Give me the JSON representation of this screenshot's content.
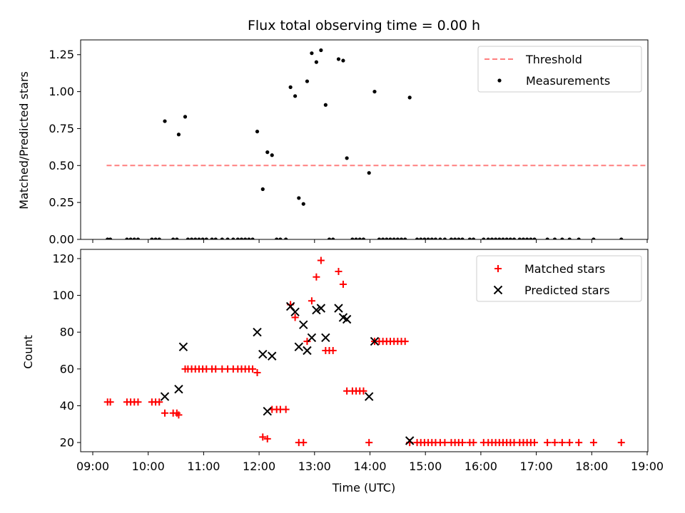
{
  "chart_data": [
    {
      "type": "scatter",
      "title": "Flux total observing time = 0.00 h",
      "xlabel": "",
      "ylabel": "Matched/Predicted stars",
      "xlim": [
        "09:00",
        "19:00"
      ],
      "ylim": [
        0,
        1.35
      ],
      "yticks": [
        "0.00",
        "0.25",
        "0.50",
        "0.75",
        "1.00",
        "1.25"
      ],
      "xticks_shown": false,
      "legend_position": "top-right",
      "series": [
        {
          "name": "Threshold",
          "style": "dashed-line",
          "color": "#ff7f7f",
          "points": [
            [
              "09:15",
              0.5
            ],
            [
              "18:58",
              0.5
            ]
          ]
        },
        {
          "name": "Measurements",
          "style": "dot",
          "color": "#000000",
          "points": [
            [
              "09:16",
              0
            ],
            [
              "09:19",
              0
            ],
            [
              "09:37",
              0
            ],
            [
              "09:41",
              0
            ],
            [
              "09:45",
              0
            ],
            [
              "09:49",
              0
            ],
            [
              "10:04",
              0
            ],
            [
              "10:08",
              0
            ],
            [
              "10:12",
              0
            ],
            [
              "10:18",
              0.8
            ],
            [
              "10:27",
              0
            ],
            [
              "10:31",
              0
            ],
            [
              "10:33",
              0.71
            ],
            [
              "10:40",
              0.83
            ],
            [
              "10:43",
              0
            ],
            [
              "10:47",
              0
            ],
            [
              "10:51",
              0
            ],
            [
              "10:55",
              0
            ],
            [
              "10:59",
              0
            ],
            [
              "11:03",
              0
            ],
            [
              "11:09",
              0
            ],
            [
              "11:13",
              0
            ],
            [
              "11:20",
              0
            ],
            [
              "11:26",
              0
            ],
            [
              "11:32",
              0
            ],
            [
              "11:37",
              0
            ],
            [
              "11:41",
              0
            ],
            [
              "11:45",
              0
            ],
            [
              "11:49",
              0
            ],
            [
              "11:53",
              0
            ],
            [
              "11:58",
              0.73
            ],
            [
              "12:04",
              0.34
            ],
            [
              "12:09",
              0.59
            ],
            [
              "12:14",
              0.57
            ],
            [
              "12:19",
              0
            ],
            [
              "12:23",
              0
            ],
            [
              "12:29",
              0
            ],
            [
              "12:34",
              1.03
            ],
            [
              "12:39",
              0.97
            ],
            [
              "12:43",
              0.28
            ],
            [
              "12:48",
              0.24
            ],
            [
              "12:52",
              1.07
            ],
            [
              "12:57",
              1.26
            ],
            [
              "13:02",
              1.2
            ],
            [
              "13:07",
              1.28
            ],
            [
              "13:12",
              0.91
            ],
            [
              "13:16",
              0
            ],
            [
              "13:20",
              0
            ],
            [
              "13:26",
              1.22
            ],
            [
              "13:31",
              1.21
            ],
            [
              "13:35",
              0.55
            ],
            [
              "13:41",
              0
            ],
            [
              "13:45",
              0
            ],
            [
              "13:49",
              0
            ],
            [
              "13:53",
              0
            ],
            [
              "13:59",
              0.45
            ],
            [
              "14:05",
              1.0
            ],
            [
              "14:10",
              0
            ],
            [
              "14:14",
              0
            ],
            [
              "14:18",
              0
            ],
            [
              "14:22",
              0
            ],
            [
              "14:26",
              0
            ],
            [
              "14:30",
              0
            ],
            [
              "14:34",
              0
            ],
            [
              "14:38",
              0
            ],
            [
              "14:43",
              0.96
            ],
            [
              "14:51",
              0
            ],
            [
              "14:55",
              0
            ],
            [
              "14:59",
              0
            ],
            [
              "15:03",
              0
            ],
            [
              "15:07",
              0
            ],
            [
              "15:11",
              0
            ],
            [
              "15:16",
              0
            ],
            [
              "15:21",
              0
            ],
            [
              "15:28",
              0
            ],
            [
              "15:32",
              0
            ],
            [
              "15:36",
              0
            ],
            [
              "15:40",
              0
            ],
            [
              "15:48",
              0
            ],
            [
              "15:52",
              0
            ],
            [
              "16:03",
              0
            ],
            [
              "16:08",
              0
            ],
            [
              "16:12",
              0
            ],
            [
              "16:16",
              0
            ],
            [
              "16:20",
              0
            ],
            [
              "16:24",
              0
            ],
            [
              "16:28",
              0
            ],
            [
              "16:32",
              0
            ],
            [
              "16:36",
              0
            ],
            [
              "16:42",
              0
            ],
            [
              "16:46",
              0
            ],
            [
              "16:50",
              0
            ],
            [
              "16:54",
              0
            ],
            [
              "16:58",
              0
            ],
            [
              "17:12",
              0
            ],
            [
              "17:20",
              0
            ],
            [
              "17:28",
              0
            ],
            [
              "17:36",
              0
            ],
            [
              "17:46",
              0
            ],
            [
              "18:02",
              0
            ],
            [
              "18:32",
              0
            ]
          ]
        }
      ]
    },
    {
      "type": "scatter",
      "title": "",
      "xlabel": "Time (UTC)",
      "ylabel": "Count",
      "xlim": [
        "09:00",
        "19:00"
      ],
      "ylim": [
        15,
        125
      ],
      "yticks": [
        "20",
        "40",
        "60",
        "80",
        "100",
        "120"
      ],
      "xticks": [
        "09:00",
        "10:00",
        "11:00",
        "12:00",
        "13:00",
        "14:00",
        "15:00",
        "16:00",
        "17:00",
        "18:00",
        "19:00"
      ],
      "legend_position": "top-right",
      "series": [
        {
          "name": "Matched stars",
          "style": "plus",
          "color": "#ff0000",
          "points": [
            [
              "09:16",
              42
            ],
            [
              "09:19",
              42
            ],
            [
              "09:37",
              42
            ],
            [
              "09:41",
              42
            ],
            [
              "09:45",
              42
            ],
            [
              "09:49",
              42
            ],
            [
              "10:04",
              42
            ],
            [
              "10:08",
              42
            ],
            [
              "10:12",
              42
            ],
            [
              "10:18",
              36
            ],
            [
              "10:27",
              36
            ],
            [
              "10:31",
              36
            ],
            [
              "10:33",
              35
            ],
            [
              "10:40",
              60
            ],
            [
              "10:43",
              60
            ],
            [
              "10:47",
              60
            ],
            [
              "10:51",
              60
            ],
            [
              "10:55",
              60
            ],
            [
              "10:59",
              60
            ],
            [
              "11:03",
              60
            ],
            [
              "11:09",
              60
            ],
            [
              "11:13",
              60
            ],
            [
              "11:20",
              60
            ],
            [
              "11:26",
              60
            ],
            [
              "11:32",
              60
            ],
            [
              "11:37",
              60
            ],
            [
              "11:41",
              60
            ],
            [
              "11:45",
              60
            ],
            [
              "11:49",
              60
            ],
            [
              "11:53",
              60
            ],
            [
              "11:58",
              58
            ],
            [
              "12:04",
              23
            ],
            [
              "12:09",
              22
            ],
            [
              "12:14",
              38
            ],
            [
              "12:19",
              38
            ],
            [
              "12:23",
              38
            ],
            [
              "12:29",
              38
            ],
            [
              "12:34",
              95
            ],
            [
              "12:39",
              88
            ],
            [
              "12:43",
              20
            ],
            [
              "12:48",
              20
            ],
            [
              "12:52",
              75
            ],
            [
              "12:57",
              97
            ],
            [
              "13:02",
              110
            ],
            [
              "13:07",
              119
            ],
            [
              "13:12",
              70
            ],
            [
              "13:16",
              70
            ],
            [
              "13:20",
              70
            ],
            [
              "13:26",
              113
            ],
            [
              "13:31",
              106
            ],
            [
              "13:35",
              48
            ],
            [
              "13:41",
              48
            ],
            [
              "13:45",
              48
            ],
            [
              "13:49",
              48
            ],
            [
              "13:53",
              48
            ],
            [
              "13:59",
              20
            ],
            [
              "14:05",
              75
            ],
            [
              "14:10",
              75
            ],
            [
              "14:14",
              75
            ],
            [
              "14:18",
              75
            ],
            [
              "14:22",
              75
            ],
            [
              "14:26",
              75
            ],
            [
              "14:30",
              75
            ],
            [
              "14:34",
              75
            ],
            [
              "14:38",
              75
            ],
            [
              "14:43",
              20
            ],
            [
              "14:51",
              20
            ],
            [
              "14:55",
              20
            ],
            [
              "14:59",
              20
            ],
            [
              "15:03",
              20
            ],
            [
              "15:07",
              20
            ],
            [
              "15:11",
              20
            ],
            [
              "15:16",
              20
            ],
            [
              "15:21",
              20
            ],
            [
              "15:28",
              20
            ],
            [
              "15:32",
              20
            ],
            [
              "15:36",
              20
            ],
            [
              "15:40",
              20
            ],
            [
              "15:48",
              20
            ],
            [
              "15:52",
              20
            ],
            [
              "16:03",
              20
            ],
            [
              "16:08",
              20
            ],
            [
              "16:12",
              20
            ],
            [
              "16:16",
              20
            ],
            [
              "16:20",
              20
            ],
            [
              "16:24",
              20
            ],
            [
              "16:28",
              20
            ],
            [
              "16:32",
              20
            ],
            [
              "16:36",
              20
            ],
            [
              "16:42",
              20
            ],
            [
              "16:46",
              20
            ],
            [
              "16:50",
              20
            ],
            [
              "16:54",
              20
            ],
            [
              "16:58",
              20
            ],
            [
              "17:12",
              20
            ],
            [
              "17:20",
              20
            ],
            [
              "17:28",
              20
            ],
            [
              "17:36",
              20
            ],
            [
              "17:46",
              20
            ],
            [
              "18:02",
              20
            ],
            [
              "18:32",
              20
            ]
          ]
        },
        {
          "name": "Predicted stars",
          "style": "x",
          "color": "#000000",
          "points": [
            [
              "10:18",
              45
            ],
            [
              "10:33",
              49
            ],
            [
              "10:38",
              72
            ],
            [
              "11:58",
              80
            ],
            [
              "12:04",
              68
            ],
            [
              "12:09",
              37
            ],
            [
              "12:14",
              67
            ],
            [
              "12:34",
              94
            ],
            [
              "12:39",
              91
            ],
            [
              "12:43",
              72
            ],
            [
              "12:48",
              84
            ],
            [
              "12:52",
              70
            ],
            [
              "12:57",
              77
            ],
            [
              "13:02",
              92
            ],
            [
              "13:07",
              93
            ],
            [
              "13:12",
              77
            ],
            [
              "13:26",
              93
            ],
            [
              "13:31",
              88
            ],
            [
              "13:35",
              87
            ],
            [
              "13:59",
              45
            ],
            [
              "14:05",
              75
            ],
            [
              "14:43",
              21
            ]
          ]
        }
      ]
    }
  ]
}
